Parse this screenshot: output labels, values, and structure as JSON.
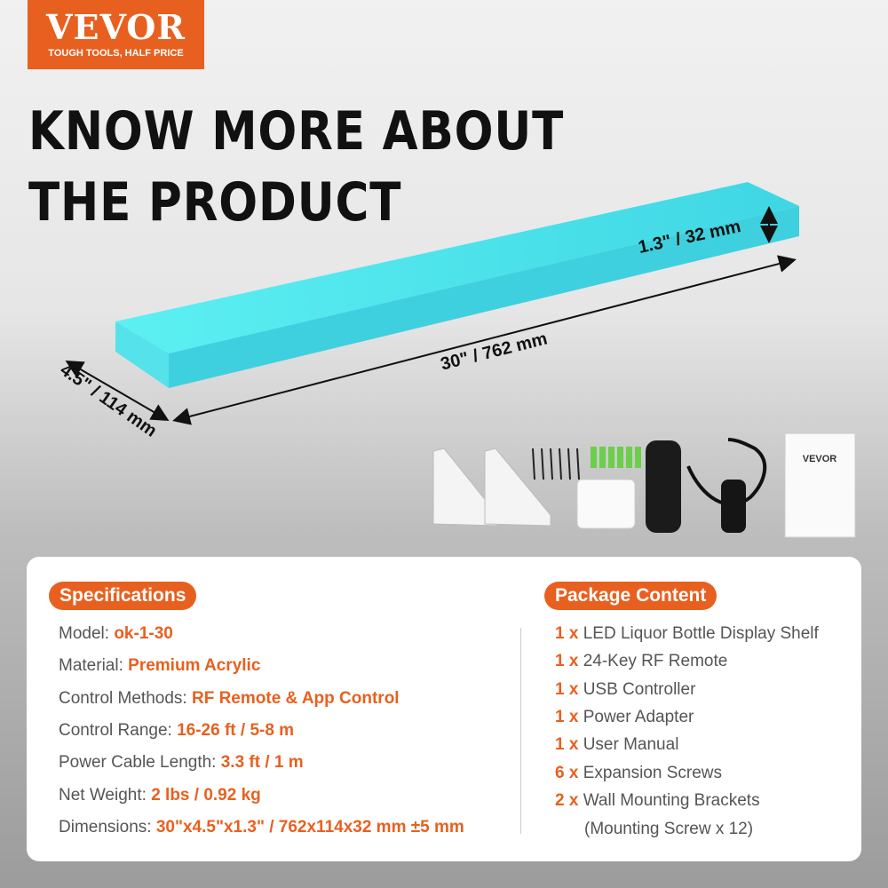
{
  "logo": {
    "brand": "VEVOR",
    "registered": "®",
    "tagline": "TOUGH TOOLS, HALF PRICE"
  },
  "headline": {
    "line1": "KNOW MORE ABOUT",
    "line2": "THE PRODUCT"
  },
  "dimensions": {
    "height": "1.3\" / 32 mm",
    "length": "30\" / 762 mm",
    "width": "4.5\" / 114 mm"
  },
  "colors": {
    "accent": "#e8601f",
    "shelf": "#4fe6ea"
  },
  "specifications": {
    "title": "Specifications",
    "items": [
      {
        "label": "Model: ",
        "value": "ok-1-30"
      },
      {
        "label": "Material: ",
        "value": "Premium Acrylic"
      },
      {
        "label": "Control Methods: ",
        "value": "RF Remote & App Control"
      },
      {
        "label": "Control Range: ",
        "value": "16-26 ft / 5-8 m"
      },
      {
        "label": "Power Cable Length:  ",
        "value": "3.3 ft / 1 m"
      },
      {
        "label": "Net Weight: ",
        "value": "2 lbs / 0.92 kg"
      },
      {
        "label": "Dimensions: ",
        "value": "30\"x4.5\"x1.3\" / 762x114x32 mm ±5 mm"
      }
    ]
  },
  "package": {
    "title": "Package Content",
    "items": [
      {
        "qty": "1 x ",
        "name": "LED Liquor Bottle Display Shelf"
      },
      {
        "qty": "1 x ",
        "name": "24-Key RF Remote"
      },
      {
        "qty": "1 x ",
        "name": "USB Controller"
      },
      {
        "qty": "1 x ",
        "name": "Power Adapter"
      },
      {
        "qty": "1 x ",
        "name": "User Manual"
      },
      {
        "qty": "6 x ",
        "name": "Expansion Screws"
      },
      {
        "qty": "2 x ",
        "name": "Wall Mounting Brackets"
      }
    ],
    "note": "(Mounting Screw x 12)"
  },
  "manual": {
    "brand": "VEVOR"
  }
}
